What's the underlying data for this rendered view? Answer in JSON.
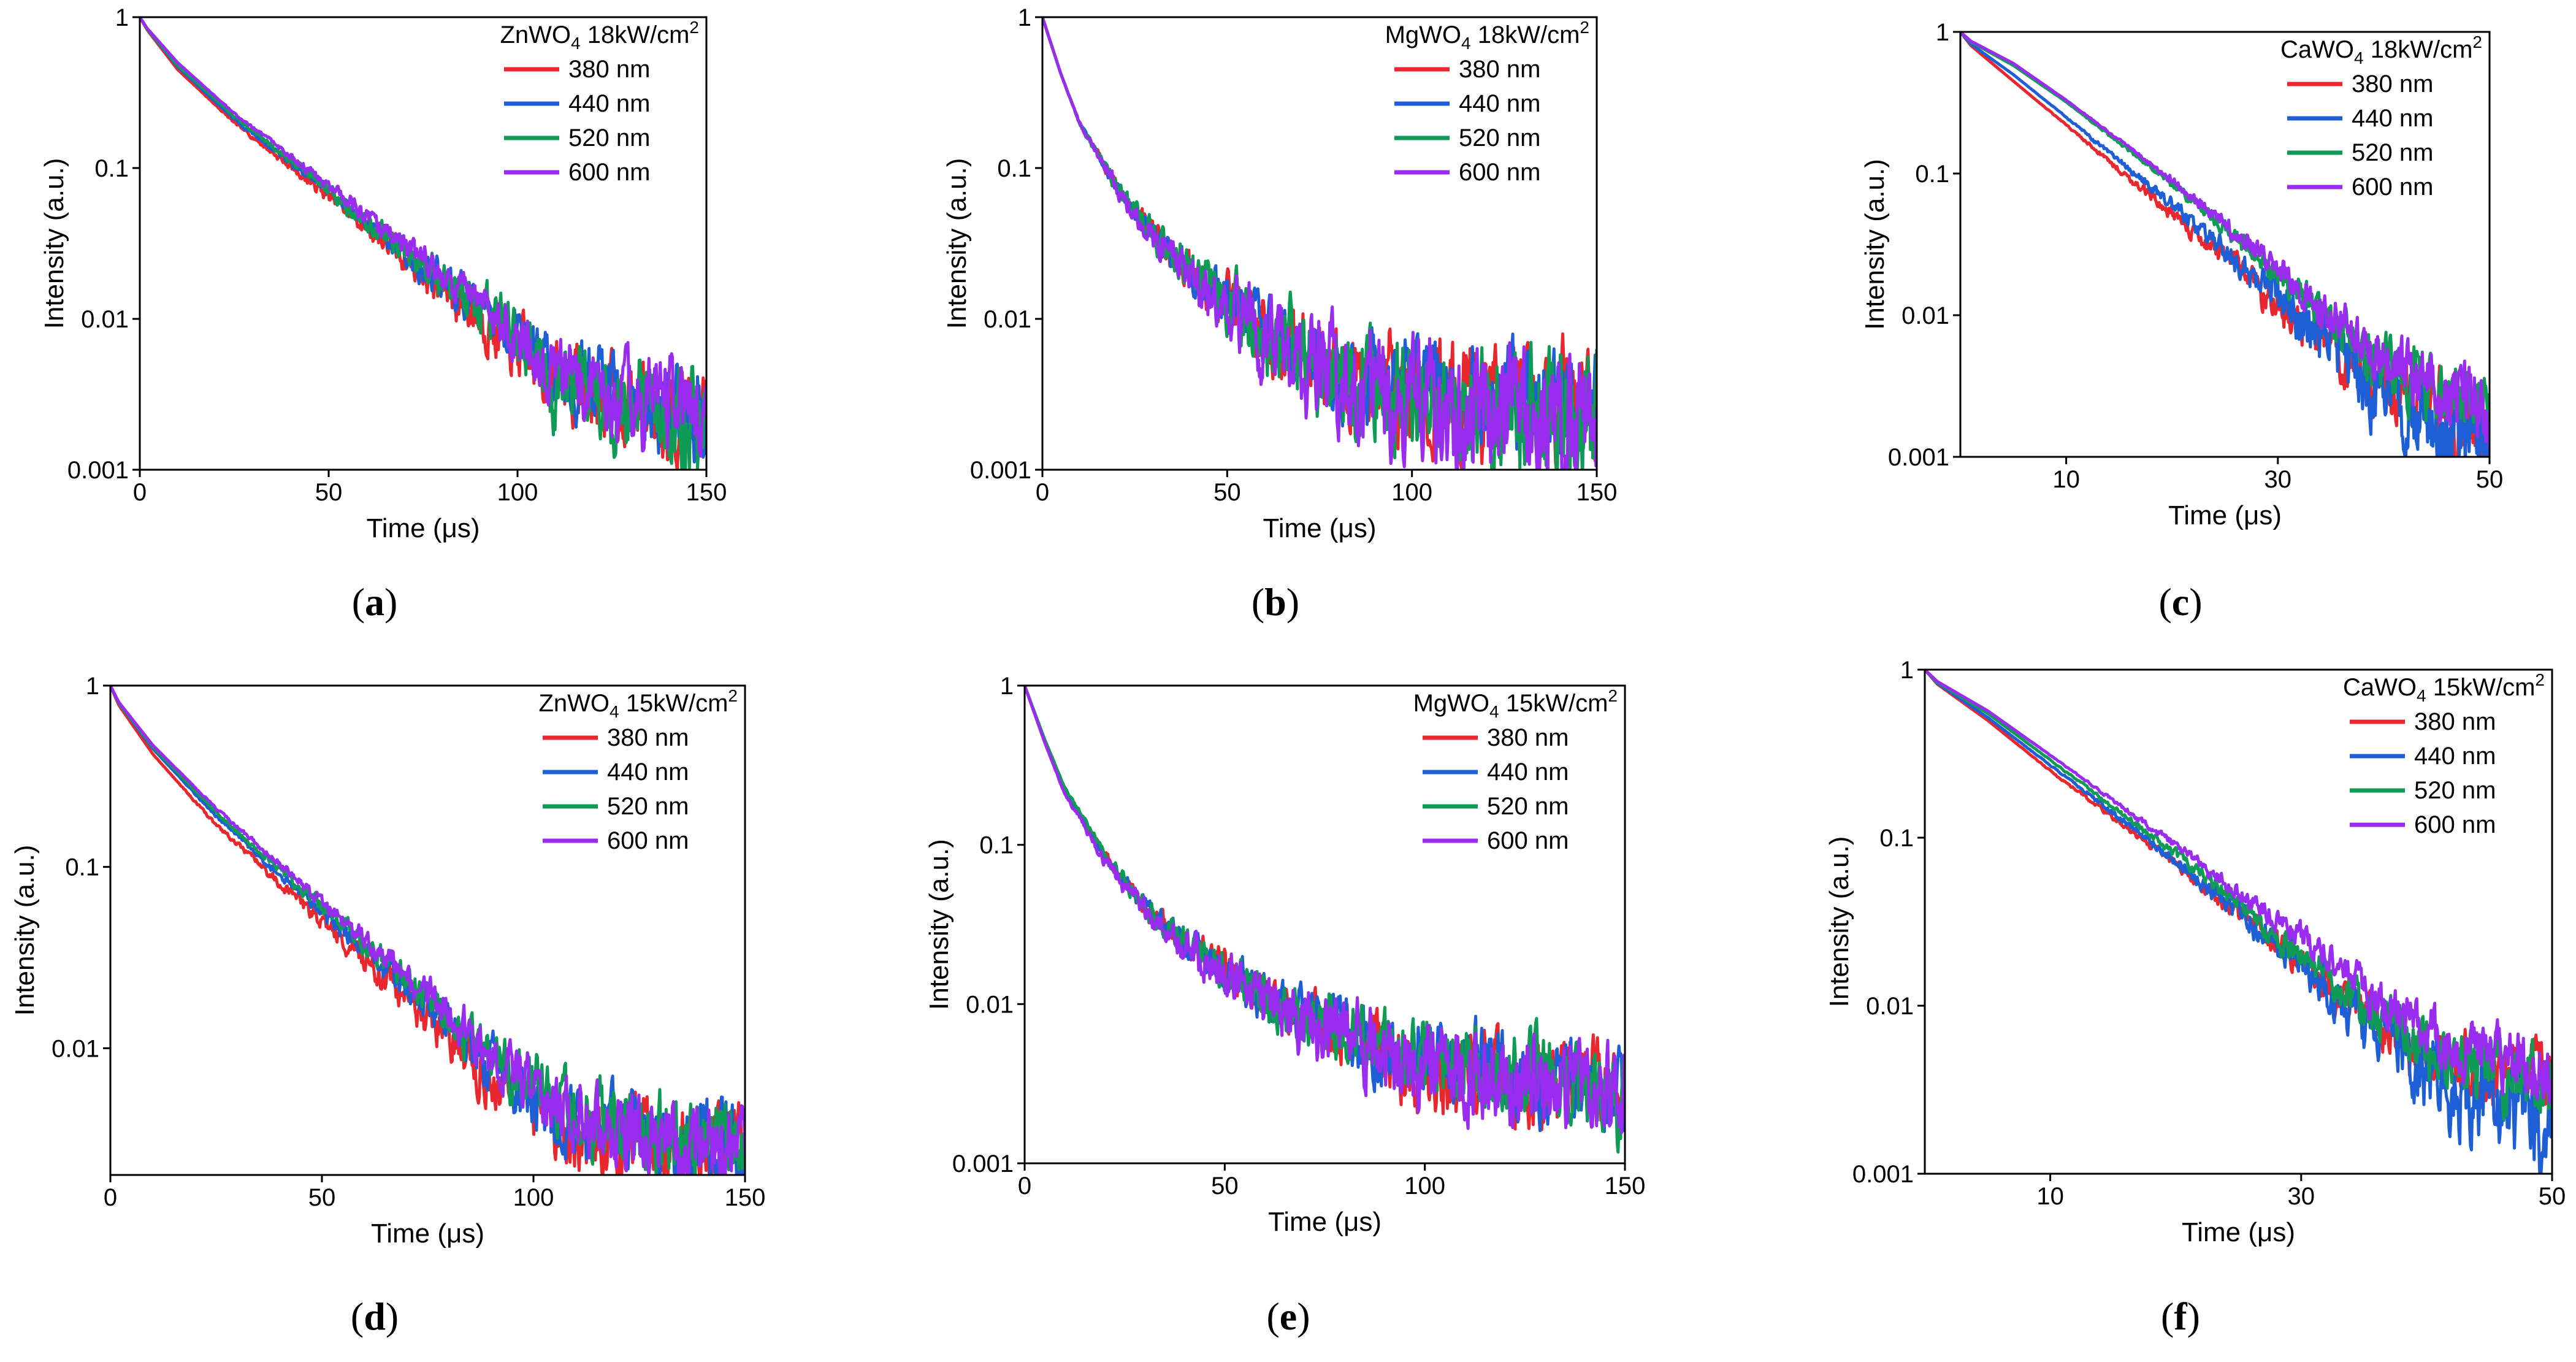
{
  "figure": {
    "colors": {
      "380": "#e8272f",
      "440": "#1f5fd6",
      "520": "#0f9a55",
      "600": "#9a2cf0",
      "axis": "#000000"
    },
    "panel_labels": [
      "(a)",
      "(b)",
      "(c)",
      "(d)",
      "(e)",
      "(f)"
    ]
  },
  "chart_data": [
    {
      "type": "line",
      "label": "(a)",
      "title_material": "ZnWO",
      "title_sub": "4",
      "title_power": "18kW/cm",
      "title_sup": "2",
      "xlabel": "Time (μs)",
      "ylabel": "Intensity (a.u.)",
      "yscale": "log",
      "xlim": [
        0,
        150
      ],
      "ylim": [
        0.001,
        1
      ],
      "xticks": [
        0,
        50,
        100,
        150
      ],
      "xtick_labels": [
        "0",
        "50",
        "100",
        "150"
      ],
      "yticks": [
        0.001,
        0.01,
        0.1,
        1
      ],
      "ytick_labels": [
        "0.001",
        "0.01",
        "0.1",
        "1"
      ],
      "legend_position": "top-right",
      "series": [
        {
          "name": "380 nm",
          "key": "380",
          "x": [
            0,
            2,
            10,
            25,
            50,
            75,
            95,
            110,
            130,
            150
          ],
          "y": [
            1,
            0.82,
            0.45,
            0.2,
            0.065,
            0.02,
            0.008,
            0.004,
            0.0028,
            0.0022
          ],
          "noise": 0.35
        },
        {
          "name": "440 nm",
          "key": "440",
          "x": [
            0,
            2,
            10,
            25,
            50,
            75,
            95,
            110,
            130,
            150
          ],
          "y": [
            1,
            0.83,
            0.47,
            0.21,
            0.07,
            0.022,
            0.009,
            0.0045,
            0.003,
            0.0023
          ],
          "noise": 0.35
        },
        {
          "name": "520 nm",
          "key": "520",
          "x": [
            0,
            2,
            10,
            25,
            50,
            75,
            95,
            110,
            130,
            150
          ],
          "y": [
            1,
            0.83,
            0.48,
            0.22,
            0.072,
            0.022,
            0.009,
            0.004,
            0.0025,
            0.002
          ],
          "noise": 0.4
        },
        {
          "name": "600 nm",
          "key": "600",
          "x": [
            0,
            2,
            10,
            25,
            50,
            75,
            95,
            110,
            130,
            150
          ],
          "y": [
            1,
            0.84,
            0.5,
            0.23,
            0.076,
            0.024,
            0.0095,
            0.0045,
            0.0028,
            0.0022
          ],
          "noise": 0.35
        }
      ]
    },
    {
      "type": "line",
      "label": "(b)",
      "title_material": "MgWO",
      "title_sub": "4",
      "title_power": "18kW/cm",
      "title_sup": "2",
      "xlabel": "Time (μs)",
      "ylabel": "Intensity (a.u.)",
      "yscale": "log",
      "xlim": [
        0,
        150
      ],
      "ylim": [
        0.001,
        1
      ],
      "xticks": [
        0,
        50,
        100,
        150
      ],
      "xtick_labels": [
        "0",
        "50",
        "100",
        "150"
      ],
      "yticks": [
        0.001,
        0.01,
        0.1,
        1
      ],
      "ytick_labels": [
        "0.001",
        "0.01",
        "0.1",
        "1"
      ],
      "legend_position": "top-right",
      "series": [
        {
          "name": "380 nm",
          "key": "380",
          "x": [
            0,
            5,
            10,
            20,
            30,
            40,
            50,
            60,
            80,
            100,
            150
          ],
          "y": [
            1,
            0.42,
            0.2,
            0.075,
            0.035,
            0.02,
            0.013,
            0.008,
            0.0045,
            0.0035,
            0.0025
          ],
          "noise": 0.45
        },
        {
          "name": "440 nm",
          "key": "440",
          "x": [
            0,
            5,
            10,
            20,
            30,
            40,
            50,
            60,
            80,
            100,
            150
          ],
          "y": [
            1,
            0.42,
            0.2,
            0.075,
            0.035,
            0.02,
            0.013,
            0.008,
            0.0045,
            0.0035,
            0.0025
          ],
          "noise": 0.4
        },
        {
          "name": "520 nm",
          "key": "520",
          "x": [
            0,
            5,
            10,
            20,
            30,
            40,
            50,
            60,
            80,
            100,
            150
          ],
          "y": [
            1,
            0.42,
            0.2,
            0.075,
            0.036,
            0.021,
            0.013,
            0.008,
            0.004,
            0.003,
            0.0022
          ],
          "noise": 0.5
        },
        {
          "name": "600 nm",
          "key": "600",
          "x": [
            0,
            5,
            10,
            20,
            30,
            40,
            50,
            60,
            80,
            100,
            150
          ],
          "y": [
            1,
            0.42,
            0.2,
            0.075,
            0.035,
            0.02,
            0.012,
            0.0075,
            0.004,
            0.0028,
            0.002
          ],
          "noise": 0.5
        }
      ]
    },
    {
      "type": "line",
      "label": "(c)",
      "title_material": "CaWO",
      "title_sub": "4",
      "title_power": " 18kW/cm",
      "title_sup": "2",
      "xlabel": "Time (μs)",
      "ylabel": "Intensity (a.u.)",
      "yscale": "log",
      "xlim": [
        0,
        50
      ],
      "ylim": [
        0.001,
        1
      ],
      "xticks": [
        10,
        30,
        50
      ],
      "xtick_labels": [
        "10",
        "30",
        "50"
      ],
      "yticks": [
        0.001,
        0.01,
        0.1,
        1
      ],
      "ytick_labels": [
        "0.001",
        "0.01",
        "0.1",
        "1"
      ],
      "legend_position": "top-right",
      "series": [
        {
          "name": "380 nm",
          "key": "380",
          "x": [
            0,
            1,
            5,
            10,
            20,
            30,
            35,
            40,
            45,
            50
          ],
          "y": [
            1,
            0.8,
            0.45,
            0.22,
            0.052,
            0.012,
            0.006,
            0.003,
            0.0022,
            0.0016
          ],
          "noise": 0.3
        },
        {
          "name": "440 nm",
          "key": "440",
          "x": [
            0,
            1,
            5,
            10,
            20,
            30,
            35,
            40,
            45,
            50
          ],
          "y": [
            1,
            0.82,
            0.5,
            0.25,
            0.06,
            0.013,
            0.006,
            0.0025,
            0.0018,
            0.0014
          ],
          "noise": 0.35
        },
        {
          "name": "520 nm",
          "key": "520",
          "x": [
            0,
            1,
            5,
            10,
            20,
            30,
            35,
            40,
            45,
            50
          ],
          "y": [
            1,
            0.85,
            0.58,
            0.32,
            0.085,
            0.02,
            0.009,
            0.0045,
            0.003,
            0.002
          ],
          "noise": 0.3
        },
        {
          "name": "600 nm",
          "key": "600",
          "x": [
            0,
            1,
            5,
            10,
            20,
            30,
            35,
            40,
            45,
            50
          ],
          "y": [
            1,
            0.86,
            0.6,
            0.33,
            0.09,
            0.021,
            0.0095,
            0.005,
            0.003,
            0.002
          ],
          "noise": 0.3
        }
      ]
    },
    {
      "type": "line",
      "label": "(d)",
      "title_material": "ZnWO",
      "title_sub": "4",
      "title_power": "15kW/cm",
      "title_sup": "2",
      "xlabel": "Time (μs)",
      "ylabel": "Intensity (a.u.)",
      "yscale": "log",
      "xlim": [
        0,
        150
      ],
      "ylim": [
        0.002,
        1
      ],
      "xticks": [
        0,
        50,
        100,
        150
      ],
      "xtick_labels": [
        "0",
        "50",
        "100",
        "150"
      ],
      "yticks": [
        0.01,
        0.1,
        1
      ],
      "ytick_labels": [
        "0.01",
        "0.1",
        "1"
      ],
      "legend_position": "top-right",
      "series": [
        {
          "name": "380 nm",
          "key": "380",
          "x": [
            0,
            2,
            10,
            25,
            50,
            75,
            90,
            105,
            125,
            150
          ],
          "y": [
            1,
            0.78,
            0.42,
            0.17,
            0.05,
            0.015,
            0.007,
            0.0038,
            0.003,
            0.0026
          ],
          "noise": 0.3
        },
        {
          "name": "440 nm",
          "key": "440",
          "x": [
            0,
            2,
            10,
            25,
            50,
            75,
            90,
            105,
            125,
            150
          ],
          "y": [
            1,
            0.8,
            0.45,
            0.19,
            0.056,
            0.017,
            0.008,
            0.0042,
            0.0032,
            0.0027
          ],
          "noise": 0.3
        },
        {
          "name": "520 nm",
          "key": "520",
          "x": [
            0,
            2,
            10,
            25,
            50,
            75,
            90,
            105,
            125,
            150
          ],
          "y": [
            1,
            0.8,
            0.46,
            0.2,
            0.06,
            0.019,
            0.009,
            0.0048,
            0.0035,
            0.003
          ],
          "noise": 0.3
        },
        {
          "name": "600 nm",
          "key": "600",
          "x": [
            0,
            2,
            10,
            25,
            50,
            75,
            90,
            105,
            125,
            150
          ],
          "y": [
            1,
            0.81,
            0.47,
            0.21,
            0.064,
            0.02,
            0.0095,
            0.0045,
            0.0032,
            0.0028
          ],
          "noise": 0.3
        }
      ]
    },
    {
      "type": "line",
      "label": "(e)",
      "title_material": "MgWO",
      "title_sub": "4",
      "title_power": "15kW/cm",
      "title_sup": "2",
      "xlabel": "Time (μs)",
      "ylabel": "Intensity (a.u.)",
      "yscale": "log",
      "xlim": [
        0,
        150
      ],
      "ylim": [
        0.001,
        1
      ],
      "xticks": [
        0,
        50,
        100,
        150
      ],
      "xtick_labels": [
        "0",
        "50",
        "100",
        "150"
      ],
      "yticks": [
        0.001,
        0.01,
        0.1,
        1
      ],
      "ytick_labels": [
        "0.001",
        "0.01",
        "0.1",
        "1"
      ],
      "legend_position": "top-right",
      "series": [
        {
          "name": "380 nm",
          "key": "380",
          "x": [
            0,
            5,
            10,
            20,
            30,
            40,
            50,
            60,
            80,
            100,
            150
          ],
          "y": [
            1,
            0.45,
            0.22,
            0.085,
            0.04,
            0.024,
            0.016,
            0.011,
            0.0065,
            0.004,
            0.0025
          ],
          "noise": 0.35
        },
        {
          "name": "440 nm",
          "key": "440",
          "x": [
            0,
            5,
            10,
            20,
            30,
            40,
            50,
            60,
            80,
            100,
            150
          ],
          "y": [
            1,
            0.45,
            0.22,
            0.085,
            0.04,
            0.024,
            0.016,
            0.011,
            0.0065,
            0.0045,
            0.003
          ],
          "noise": 0.35
        },
        {
          "name": "520 nm",
          "key": "520",
          "x": [
            0,
            5,
            10,
            20,
            30,
            40,
            50,
            60,
            80,
            100,
            150
          ],
          "y": [
            1,
            0.46,
            0.23,
            0.09,
            0.041,
            0.024,
            0.016,
            0.011,
            0.0065,
            0.0045,
            0.0025
          ],
          "noise": 0.35
        },
        {
          "name": "600 nm",
          "key": "600",
          "x": [
            0,
            5,
            10,
            20,
            30,
            40,
            50,
            60,
            80,
            100,
            150
          ],
          "y": [
            1,
            0.44,
            0.21,
            0.08,
            0.038,
            0.023,
            0.015,
            0.01,
            0.006,
            0.004,
            0.003
          ],
          "noise": 0.4
        }
      ]
    },
    {
      "type": "line",
      "label": "(f)",
      "title_material": "CaWO",
      "title_sub": "4",
      "title_power": " 15kW/cm",
      "title_sup": "2",
      "xlabel": "Time (μs)",
      "ylabel": "Intensity (a.u.)",
      "yscale": "log",
      "xlim": [
        0,
        50
      ],
      "ylim": [
        0.001,
        1
      ],
      "xticks": [
        10,
        30,
        50
      ],
      "xtick_labels": [
        "10",
        "30",
        "50"
      ],
      "yticks": [
        0.001,
        0.01,
        0.1,
        1
      ],
      "ytick_labels": [
        "0.001",
        "0.01",
        "0.1",
        "1"
      ],
      "legend_position": "top-right",
      "series": [
        {
          "name": "380 nm",
          "key": "380",
          "x": [
            0,
            1,
            5,
            10,
            20,
            30,
            35,
            40,
            45,
            50
          ],
          "y": [
            1,
            0.82,
            0.5,
            0.25,
            0.07,
            0.018,
            0.009,
            0.005,
            0.004,
            0.0035
          ],
          "noise": 0.3
        },
        {
          "name": "440 nm",
          "key": "440",
          "x": [
            0,
            1,
            5,
            10,
            20,
            30,
            35,
            40,
            45,
            50
          ],
          "y": [
            1,
            0.83,
            0.52,
            0.27,
            0.073,
            0.018,
            0.008,
            0.004,
            0.0025,
            0.002
          ],
          "noise": 0.35
        },
        {
          "name": "520 nm",
          "key": "520",
          "x": [
            0,
            1,
            5,
            10,
            20,
            30,
            35,
            40,
            45,
            50
          ],
          "y": [
            1,
            0.84,
            0.55,
            0.29,
            0.08,
            0.02,
            0.01,
            0.0055,
            0.004,
            0.003
          ],
          "noise": 0.3
        },
        {
          "name": "600 nm",
          "key": "600",
          "x": [
            0,
            1,
            5,
            10,
            20,
            30,
            35,
            40,
            45,
            50
          ],
          "y": [
            1,
            0.85,
            0.57,
            0.31,
            0.09,
            0.025,
            0.013,
            0.007,
            0.005,
            0.0035
          ],
          "noise": 0.3
        }
      ]
    }
  ]
}
